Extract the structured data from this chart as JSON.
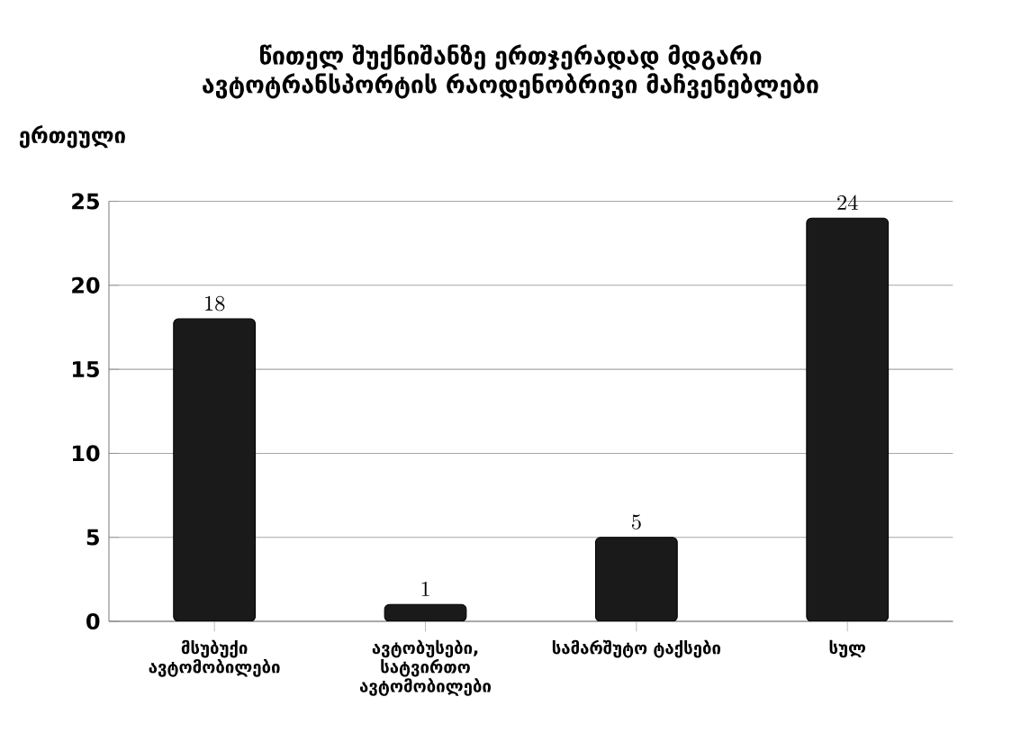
{
  "chart_data": {
    "type": "bar",
    "title": "წითელ შუქნიშანზე  ერთჯერადად მდგარი ავტოტრანსპორტის რაოდენობრივი მაჩვენებლები",
    "ylabel": "ერთეული",
    "categories": [
      "მსუბუქი ავტომობილები",
      "ავტობუსები, სატვირთო ავტომობილები",
      "სამარშუტო ტაქსები",
      "სულ"
    ],
    "values": [
      18,
      1,
      5,
      24
    ],
    "color": "#1a1a1a",
    "ylim": [
      0,
      25
    ],
    "yticks": [
      0,
      5,
      10,
      15,
      20,
      25
    ],
    "grid": "y",
    "data_labels": true
  }
}
